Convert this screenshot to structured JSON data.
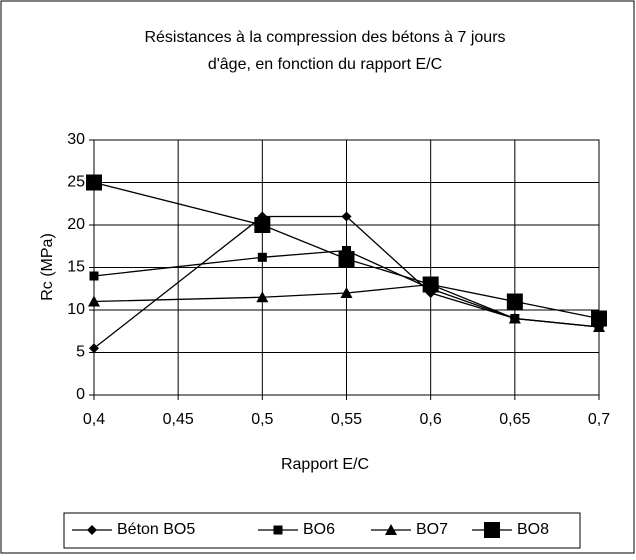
{
  "chart_data": {
    "type": "line",
    "title": [
      "Résistances à la compression des bétons à 7 jours",
      "d'âge,  en fonction du rapport E/C"
    ],
    "x_label": "Rapport E/C",
    "y_label": "Rc  (MPa)",
    "x": [
      0.4,
      0.5,
      0.55,
      0.6,
      0.65,
      0.7
    ],
    "series": [
      {
        "name": "Béton BO5",
        "color": "#000000",
        "marker": "diamond",
        "values": [
          5.5,
          21,
          21,
          12,
          9,
          8
        ]
      },
      {
        "name": "BO6",
        "color": "#000000",
        "marker": "square",
        "values": [
          14,
          16.2,
          17,
          12.5,
          9,
          8
        ]
      },
      {
        "name": "BO7",
        "color": "#000000",
        "marker": "triangle",
        "values": [
          11,
          11.5,
          12,
          13,
          9,
          8
        ]
      },
      {
        "name": "BO8",
        "color": "#000000",
        "marker": "big-square",
        "values": [
          25,
          20,
          16,
          13,
          11,
          9
        ]
      }
    ],
    "xlim": [
      0.4,
      0.7
    ],
    "xticks": [
      {
        "value": 0.4,
        "label": "0,4"
      },
      {
        "value": 0.45,
        "label": "0,45"
      },
      {
        "value": 0.5,
        "label": "0,5"
      },
      {
        "value": 0.55,
        "label": "0,55"
      },
      {
        "value": 0.6,
        "label": "0,6"
      },
      {
        "value": 0.65,
        "label": "0,65"
      },
      {
        "value": 0.7,
        "label": "0,7"
      }
    ],
    "ylim": [
      0,
      30
    ],
    "yticks": [
      0,
      5,
      10,
      15,
      20,
      25,
      30
    ],
    "grid": true,
    "legend": "bottom"
  }
}
